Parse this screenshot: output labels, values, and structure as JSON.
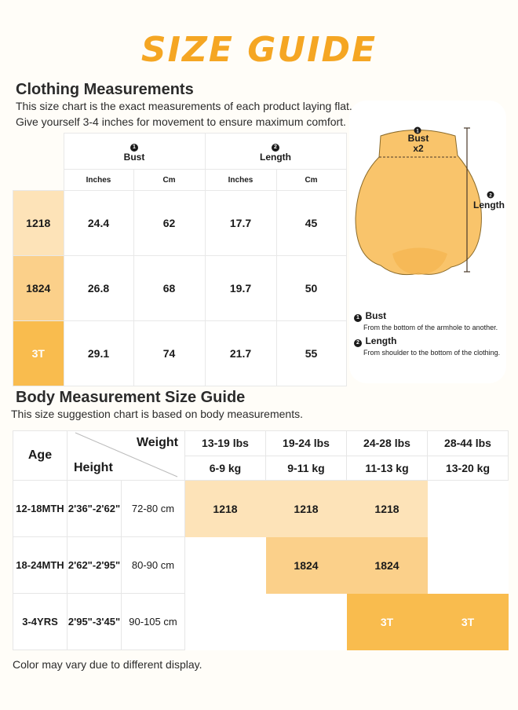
{
  "title": "SIZE GUIDE",
  "clothing": {
    "heading": "Clothing Measurements",
    "desc1": "This size chart is the exact measurements of each product laying flat.",
    "desc2": "Give yourself 3-4 inches for movement to ensure maximum comfort.",
    "bust_label": "Bust",
    "length_label": "Length",
    "inches": "Inches",
    "cm": "Cm",
    "rows": [
      {
        "size": "1218",
        "bust_in": "24.4",
        "bust_cm": "62",
        "len_in": "17.7",
        "len_cm": "45"
      },
      {
        "size": "1824",
        "bust_in": "26.8",
        "bust_cm": "68",
        "len_in": "19.7",
        "len_cm": "50"
      },
      {
        "size": "3T",
        "bust_in": "29.1",
        "bust_cm": "74",
        "len_in": "21.7",
        "len_cm": "55"
      }
    ]
  },
  "diagram": {
    "bust_label": "Bust",
    "bust_x2": "x2",
    "length_label": "Length",
    "legend": [
      {
        "num": "1",
        "title": "Bust",
        "desc": "From the bottom of the armhole to another."
      },
      {
        "num": "2",
        "title": "Length",
        "desc": "From shoulder to the bottom of the clothing."
      }
    ]
  },
  "body": {
    "heading": "Body Measurement Size Guide",
    "desc": "This size suggestion chart is based on body measurements.",
    "age_label": "Age",
    "weight_label": "Weight",
    "height_label": "Height",
    "weights_lbs": [
      "13-19 lbs",
      "19-24 lbs",
      "24-28 lbs",
      "28-44 lbs"
    ],
    "weights_kg": [
      "6-9 kg",
      "9-11 kg",
      "11-13 kg",
      "13-20 kg"
    ],
    "rows": [
      {
        "age": "12-18MTH",
        "height_in": "2'36\"-2'62\"",
        "height_cm": "72-80 cm",
        "cells": [
          "1218",
          "1218",
          "1218",
          ""
        ]
      },
      {
        "age": "18-24MTH",
        "height_in": "2'62\"-2'95\"",
        "height_cm": "80-90 cm",
        "cells": [
          "",
          "1824",
          "1824",
          ""
        ]
      },
      {
        "age": "3-4YRS",
        "height_in": "2'95\"-3'45\"",
        "height_cm": "90-105 cm",
        "cells": [
          "",
          "",
          "3T",
          "3T"
        ]
      }
    ]
  },
  "footer": "Color may vary due to different display.",
  "colors": {
    "title": "#f5a623",
    "size1218": "#fde3b8",
    "size1824": "#fbd08a",
    "size3t": "#f9bc4e",
    "shirt": "#f9c46b"
  }
}
